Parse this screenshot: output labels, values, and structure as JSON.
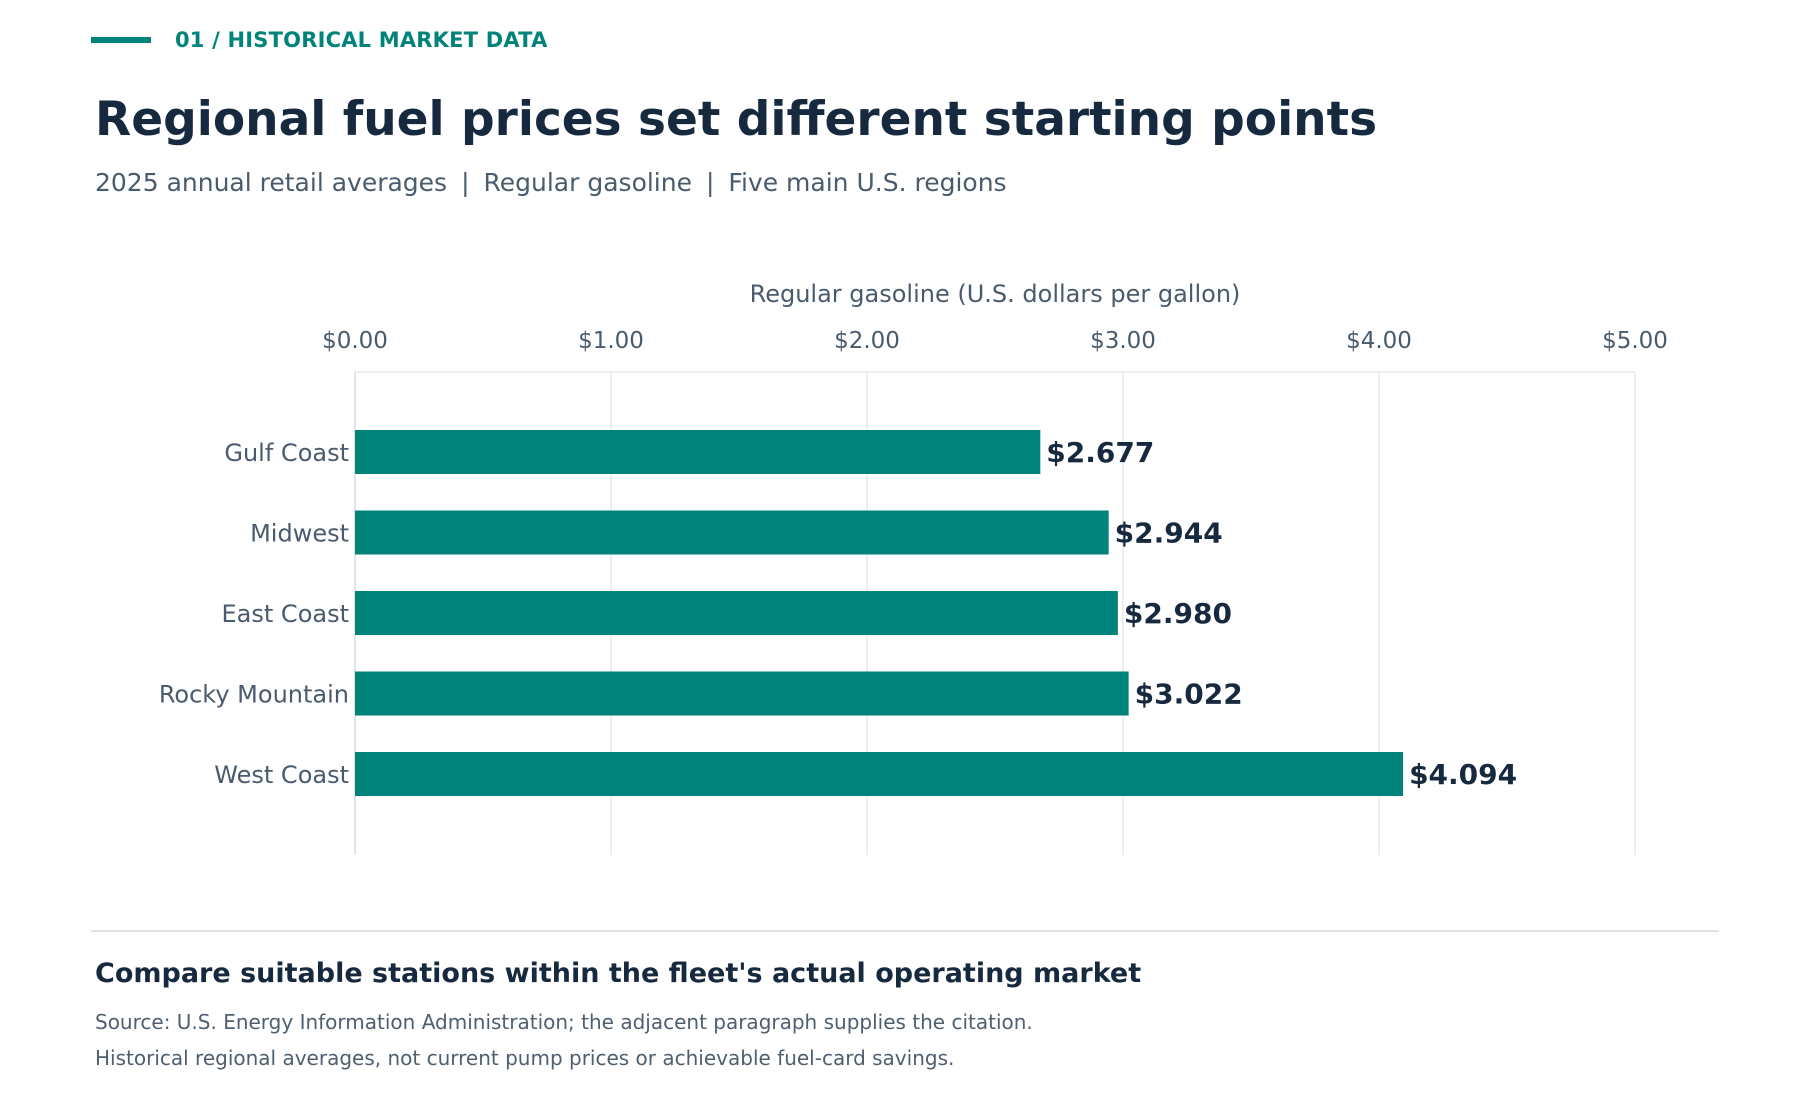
{
  "header": {
    "eyebrow": "01 / HISTORICAL MARKET DATA",
    "title": "Regional fuel prices set different starting points",
    "subtitle_parts": [
      "2025 annual retail averages",
      "Regular gasoline",
      "Five main U.S. regions"
    ],
    "subtitle_separator": "|"
  },
  "chart_data": {
    "type": "bar",
    "orientation": "horizontal",
    "xlabel": "Regular gasoline (U.S. dollars per gallon)",
    "xlim": [
      0,
      5
    ],
    "xticks": [
      0,
      1,
      2,
      3,
      4,
      5
    ],
    "xtick_labels": [
      "$0.00",
      "$1.00",
      "$2.00",
      "$3.00",
      "$4.00",
      "$5.00"
    ],
    "axis_position": "top",
    "grid": true,
    "categories": [
      "Gulf Coast",
      "Midwest",
      "East Coast",
      "Rocky Mountain",
      "West Coast"
    ],
    "values": [
      2.677,
      2.944,
      2.98,
      3.022,
      4.094
    ],
    "value_labels": [
      "$2.677",
      "$2.944",
      "$2.980",
      "$3.022",
      "$4.094"
    ],
    "bar_color": "#00837a"
  },
  "footer": {
    "takeaway": "Compare suitable stations within the fleet's actual operating market",
    "notes": [
      "Source: U.S. Energy Information Administration; the adjacent paragraph supplies the citation.",
      "Historical regional averages, not current pump prices or achievable fuel-card savings."
    ]
  },
  "colors": {
    "accent": "#00837a",
    "heading": "#17293e",
    "muted": "#4a5b6d",
    "grid": "#e6e9ec"
  }
}
